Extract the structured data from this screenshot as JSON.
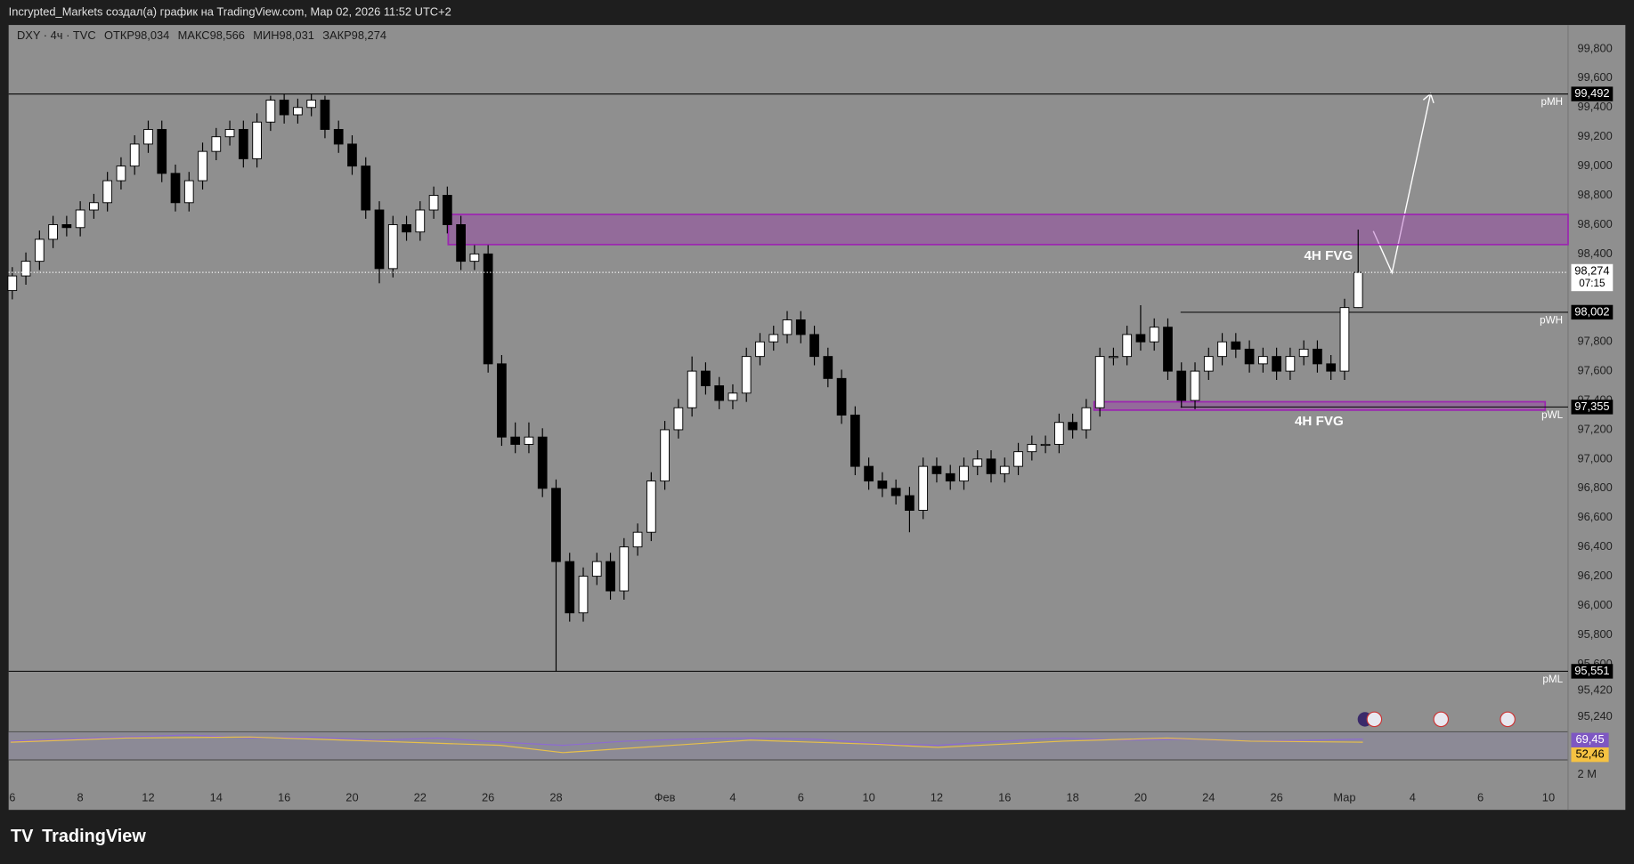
{
  "top_bar": {
    "text": "Incrypted_Markets создал(а) график на TradingView.com, Мар 02, 2026 11:52 UTC+2"
  },
  "legend": {
    "symbol": "DXY · 4ч · TVC",
    "fields": [
      {
        "name": "ОТКР",
        "value": "98,034"
      },
      {
        "name": "МАКС",
        "value": "98,566"
      },
      {
        "name": "МИН",
        "value": "98,031"
      },
      {
        "name": "ЗАКР",
        "value": "98,274"
      }
    ]
  },
  "footer": {
    "brand": "TradingView"
  },
  "chart_data": {
    "type": "candlestick",
    "up_color": "#ffffff",
    "down_color": "#000000",
    "categories": [
      "6",
      null,
      null,
      null,
      null,
      "8",
      null,
      null,
      null,
      null,
      "12",
      null,
      null,
      null,
      null,
      "14",
      null,
      null,
      null,
      null,
      "16",
      null,
      null,
      null,
      null,
      "20",
      null,
      null,
      null,
      null,
      "22",
      null,
      null,
      null,
      null,
      "26",
      null,
      null,
      null,
      null,
      "28",
      null,
      null,
      null,
      null,
      null,
      null,
      null,
      "Фев",
      null,
      null,
      null,
      null,
      "4",
      null,
      null,
      null,
      null,
      "6",
      null,
      null,
      null,
      null,
      "10",
      null,
      null,
      null,
      null,
      "12",
      null,
      null,
      null,
      null,
      "16",
      null,
      null,
      null,
      null,
      "18",
      null,
      null,
      null,
      null,
      "20",
      null,
      null,
      null,
      null,
      "24",
      null,
      null,
      null,
      null,
      "26",
      null,
      null,
      null,
      null,
      "Мар",
      null,
      null,
      null,
      null,
      "4",
      null,
      null,
      null,
      null,
      "6",
      null,
      null,
      null,
      null,
      "10",
      null
    ],
    "open": [
      98150,
      98250,
      98350,
      98500,
      98600,
      98580,
      98700,
      98750,
      98900,
      99000,
      99150,
      99250,
      98950,
      98750,
      98900,
      99100,
      99200,
      99250,
      99050,
      99300,
      99450,
      99350,
      99400,
      99450,
      99250,
      99150,
      99000,
      98700,
      98300,
      98600,
      98550,
      98700,
      98800,
      98600,
      98350,
      98400,
      97650,
      97150,
      97100,
      97150,
      96800,
      96300,
      95950,
      96200,
      96300,
      96100,
      96400,
      96500,
      96850,
      97200,
      97350,
      97600,
      97500,
      97400,
      97450,
      97700,
      97800,
      97850,
      97950,
      97850,
      97700,
      97550,
      97300,
      96950,
      96850,
      96800,
      96750,
      96650,
      96950,
      96900,
      96850,
      96950,
      97000,
      96900,
      96950,
      97050,
      97100,
      97100,
      97250,
      97200,
      97350,
      97700,
      97700,
      97850,
      97800,
      97900,
      97600,
      97400,
      97600,
      97700,
      97800,
      97750,
      97650,
      97700,
      97600,
      97700,
      97750,
      97650,
      97600,
      98034,
      null,
      null,
      null,
      null,
      null,
      null,
      null,
      null,
      null,
      null,
      null,
      null,
      null,
      null,
      null
    ],
    "high": [
      98310,
      98410,
      98560,
      98660,
      98660,
      98760,
      98810,
      98960,
      99060,
      99210,
      99310,
      99310,
      99010,
      98960,
      99160,
      99260,
      99310,
      99310,
      99360,
      99480,
      99490,
      99460,
      99492,
      99480,
      99310,
      99210,
      99060,
      98760,
      98660,
      98660,
      98760,
      98860,
      98860,
      98660,
      98460,
      98460,
      97710,
      97250,
      97250,
      97210,
      96860,
      96360,
      96260,
      96360,
      96360,
      96460,
      96560,
      96910,
      97260,
      97410,
      97700,
      97660,
      97560,
      97510,
      97760,
      97860,
      97910,
      98010,
      98010,
      97910,
      97760,
      97610,
      97360,
      97010,
      96910,
      96860,
      96810,
      97010,
      97010,
      96960,
      97010,
      97060,
      97060,
      97010,
      97110,
      97160,
      97160,
      97310,
      97310,
      97410,
      97760,
      97760,
      97910,
      98050,
      97960,
      97960,
      97660,
      97660,
      97760,
      97860,
      97860,
      97810,
      97760,
      97760,
      97760,
      97810,
      97810,
      97710,
      98094,
      98566,
      null,
      null,
      null,
      null,
      null,
      null,
      null,
      null,
      null,
      null,
      null,
      null,
      null,
      null,
      null
    ],
    "low": [
      98090,
      98190,
      98290,
      98440,
      98520,
      98520,
      98640,
      98690,
      98840,
      98940,
      99090,
      98890,
      98690,
      98690,
      98840,
      99040,
      99140,
      98990,
      98990,
      99240,
      99290,
      99290,
      99340,
      99190,
      99090,
      98940,
      98640,
      98200,
      98240,
      98490,
      98490,
      98640,
      98540,
      98290,
      98290,
      97590,
      97090,
      97040,
      97040,
      96740,
      95551,
      95890,
      95890,
      96140,
      96040,
      96040,
      96340,
      96440,
      96790,
      97140,
      97290,
      97440,
      97340,
      97340,
      97390,
      97640,
      97740,
      97790,
      97790,
      97640,
      97490,
      97240,
      96890,
      96790,
      96740,
      96690,
      96500,
      96590,
      96840,
      96790,
      96790,
      96890,
      96840,
      96840,
      96890,
      96990,
      97040,
      97040,
      97140,
      97140,
      97290,
      97640,
      97640,
      97740,
      97740,
      97540,
      97350,
      97340,
      97540,
      97640,
      97690,
      97590,
      97590,
      97540,
      97540,
      97640,
      97590,
      97540,
      97540,
      98031,
      null,
      null,
      null,
      null,
      null,
      null,
      null,
      null,
      null,
      null,
      null,
      null,
      null,
      null,
      null
    ],
    "close": [
      98250,
      98350,
      98500,
      98600,
      98580,
      98700,
      98750,
      98900,
      99000,
      99150,
      99250,
      98950,
      98750,
      98900,
      99100,
      99200,
      99250,
      99050,
      99300,
      99450,
      99350,
      99400,
      99450,
      99250,
      99150,
      99000,
      98700,
      98300,
      98600,
      98550,
      98700,
      98800,
      98600,
      98350,
      98400,
      97650,
      97150,
      97100,
      97150,
      96800,
      96300,
      95950,
      96200,
      96300,
      96100,
      96400,
      96500,
      96850,
      97200,
      97350,
      97600,
      97500,
      97400,
      97450,
      97700,
      97800,
      97850,
      97950,
      97850,
      97700,
      97550,
      97300,
      96950,
      96850,
      96800,
      96750,
      96650,
      96950,
      96900,
      96850,
      96950,
      97000,
      96900,
      96950,
      97050,
      97100,
      97100,
      97250,
      97200,
      97350,
      97700,
      97700,
      97850,
      97800,
      97900,
      97600,
      97400,
      97600,
      97700,
      97800,
      97750,
      97650,
      97700,
      97600,
      97700,
      97750,
      97650,
      97600,
      98034,
      98274,
      null,
      null,
      null,
      null,
      null,
      null,
      null,
      null,
      null,
      null,
      null,
      null,
      null,
      null,
      null
    ],
    "ylim": [
      95138,
      99963
    ],
    "yticks": [
      {
        "value": 99800,
        "label": "99,800"
      },
      {
        "value": 99600,
        "label": "99,600"
      },
      {
        "value": 99400,
        "label": "99,400"
      },
      {
        "value": 99200,
        "label": "99,200"
      },
      {
        "value": 99000,
        "label": "99,000"
      },
      {
        "value": 98800,
        "label": "98,800"
      },
      {
        "value": 98600,
        "label": "98,600"
      },
      {
        "value": 98400,
        "label": "98,400"
      },
      {
        "value": 98200,
        "label": "98,200"
      },
      {
        "value": 98000,
        "label": "98,000"
      },
      {
        "value": 97800,
        "label": "97,800"
      },
      {
        "value": 97600,
        "label": "97,600"
      },
      {
        "value": 97400,
        "label": "97,400"
      },
      {
        "value": 97200,
        "label": "97,200"
      },
      {
        "value": 97000,
        "label": "97,000"
      },
      {
        "value": 96800,
        "label": "96,800"
      },
      {
        "value": 96600,
        "label": "96,600"
      },
      {
        "value": 96400,
        "label": "96,400"
      },
      {
        "value": 96200,
        "label": "96,200"
      },
      {
        "value": 96000,
        "label": "96,000"
      },
      {
        "value": 95800,
        "label": "95,800"
      },
      {
        "value": 95600,
        "label": "95,600"
      },
      {
        "value": 95420,
        "label": "95,420"
      },
      {
        "value": 95240,
        "label": "95,240"
      }
    ],
    "levels": [
      {
        "name": "pMH",
        "value": 99492,
        "value_label": "99,492"
      },
      {
        "name": "pWH",
        "value": 98002,
        "value_label": "98,002"
      },
      {
        "name": "pWL",
        "value": 97355,
        "value_label": "97,355"
      },
      {
        "name": "pML",
        "value": 95551,
        "value_label": "95,551"
      }
    ],
    "zones": [
      {
        "label": "4H FVG",
        "top": 98670,
        "bottom": 98464,
        "color": "#9c27b0"
      },
      {
        "label": "4H FVG",
        "top": 97391,
        "bottom": 97334,
        "color": "#9c27b0"
      }
    ],
    "current_price": {
      "value": 98274,
      "label": "98,274",
      "countdown": "07:15"
    },
    "indicator": {
      "value_labels": [
        "69,45",
        "52,46"
      ],
      "values": [
        69.45,
        52.46
      ],
      "colors": [
        "#7e57c2",
        "#f5c242"
      ],
      "scale_label": "2 М"
    }
  }
}
